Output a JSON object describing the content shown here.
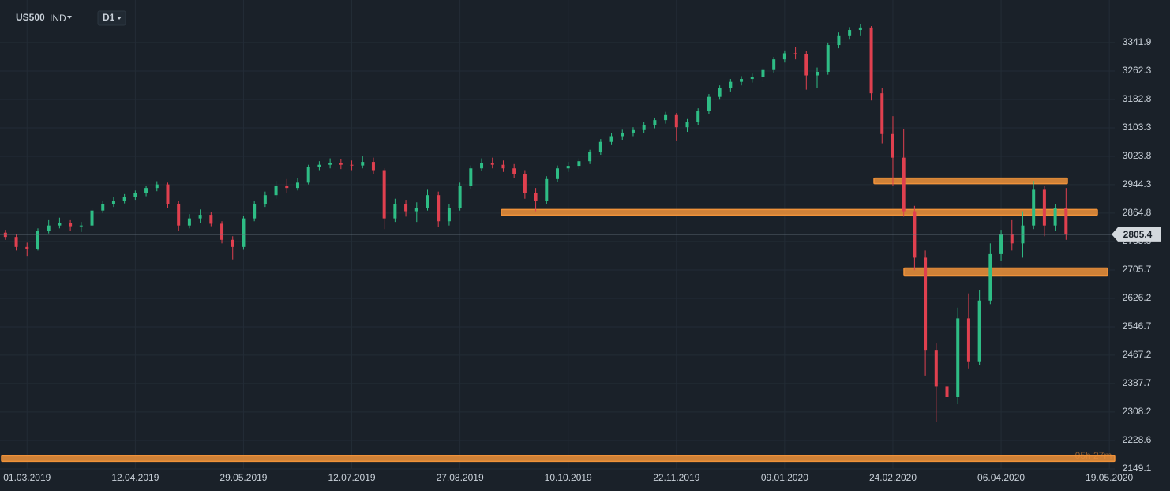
{
  "chart_data": {
    "type": "candlestick",
    "symbol": "US500",
    "market": "IND",
    "timeframe": "D1",
    "countdown": "05h 27m",
    "last_price": 2805.4,
    "categories": [
      null,
      null,
      "01.03.2019",
      null,
      null,
      null,
      null,
      null,
      null,
      null,
      null,
      null,
      "12.04.2019",
      null,
      null,
      null,
      null,
      null,
      null,
      null,
      null,
      null,
      "29.05.2019",
      null,
      null,
      null,
      null,
      null,
      null,
      null,
      null,
      null,
      "12.07.2019",
      null,
      null,
      null,
      null,
      null,
      null,
      null,
      null,
      null,
      "27.08.2019",
      null,
      null,
      null,
      null,
      null,
      null,
      null,
      null,
      null,
      "10.10.2019",
      null,
      null,
      null,
      null,
      null,
      null,
      null,
      null,
      null,
      "22.11.2019",
      null,
      null,
      null,
      null,
      null,
      null,
      null,
      null,
      null,
      "09.01.2020",
      null,
      null,
      null,
      null,
      null,
      null,
      null,
      null,
      null,
      "24.02.2020",
      null,
      null,
      null,
      null,
      null,
      null,
      null,
      null,
      null,
      "06.04.2020",
      null,
      null,
      null,
      null,
      null,
      null,
      null,
      null,
      null,
      "19.05.2020"
    ],
    "open": [
      2810,
      2798,
      2770,
      2765,
      2815,
      2830,
      2838,
      2828,
      2830,
      2872,
      2890,
      2900,
      2910,
      2920,
      2935,
      2945,
      2890,
      2830,
      2850,
      2860,
      2835,
      2790,
      2770,
      2850,
      2890,
      2915,
      2942,
      2935,
      2950,
      2993,
      3000,
      3005,
      3000,
      2998,
      3008,
      2985,
      2850,
      2890,
      2870,
      2880,
      2915,
      2842,
      2880,
      2940,
      2990,
      3005,
      3000,
      2990,
      2975,
      2920,
      2900,
      2960,
      2990,
      2997,
      3010,
      3035,
      3064,
      3080,
      3090,
      3097,
      3112,
      3125,
      3139,
      3105,
      3120,
      3150,
      3190,
      3215,
      3232,
      3240,
      3245,
      3265,
      3295,
      3312,
      3310,
      3250,
      3260,
      3335,
      3362,
      3377,
      3384,
      3200,
      3086,
      3020,
      2870,
      2740,
      2480,
      2380,
      2350,
      2570,
      2450,
      2620,
      2750,
      2805,
      2780,
      2830,
      2930,
      2830,
      2880,
      null,
      null,
      null,
      null
    ],
    "high": [
      2818,
      2805,
      2782,
      2822,
      2845,
      2852,
      2845,
      2840,
      2880,
      2898,
      2910,
      2918,
      2928,
      2942,
      2954,
      2950,
      2898,
      2862,
      2875,
      2868,
      2842,
      2800,
      2858,
      2898,
      2925,
      2955,
      2960,
      2962,
      3000,
      3010,
      3018,
      3015,
      3012,
      3025,
      3020,
      2990,
      2905,
      2902,
      2895,
      2930,
      2925,
      2890,
      2950,
      2998,
      3018,
      3020,
      3012,
      3002,
      2985,
      2935,
      2968,
      2998,
      3008,
      3018,
      3042,
      3072,
      3088,
      3098,
      3105,
      3120,
      3132,
      3148,
      3145,
      3128,
      3158,
      3198,
      3222,
      3240,
      3248,
      3255,
      3272,
      3302,
      3320,
      3330,
      3318,
      3272,
      3342,
      3370,
      3385,
      3393,
      3388,
      3215,
      3136,
      3100,
      2885,
      2760,
      2500,
      2470,
      2600,
      2640,
      2650,
      2780,
      2818,
      2845,
      2870,
      2955,
      2940,
      2890,
      2935,
      null,
      null,
      null,
      null
    ],
    "low": [
      2790,
      2760,
      2745,
      2760,
      2808,
      2822,
      2815,
      2812,
      2825,
      2865,
      2882,
      2892,
      2902,
      2912,
      2926,
      2880,
      2815,
      2822,
      2838,
      2828,
      2780,
      2735,
      2762,
      2842,
      2882,
      2905,
      2922,
      2928,
      2945,
      2985,
      2990,
      2988,
      2985,
      2990,
      2975,
      2820,
      2840,
      2855,
      2840,
      2872,
      2825,
      2830,
      2872,
      2932,
      2982,
      2990,
      2980,
      2962,
      2905,
      2870,
      2890,
      2952,
      2980,
      2988,
      3002,
      3028,
      3055,
      3070,
      3080,
      3088,
      3102,
      3115,
      3068,
      3092,
      3112,
      3142,
      3182,
      3205,
      3222,
      3230,
      3236,
      3258,
      3286,
      3295,
      3210,
      3215,
      3252,
      3326,
      3350,
      3362,
      3180,
      3060,
      2940,
      2855,
      2705,
      2410,
      2280,
      2191,
      2330,
      2430,
      2440,
      2610,
      2730,
      2760,
      2740,
      2820,
      2800,
      2815,
      2790,
      null,
      null,
      null,
      null
    ],
    "close": [
      2798,
      2770,
      2765,
      2815,
      2830,
      2838,
      2828,
      2830,
      2872,
      2890,
      2900,
      2910,
      2920,
      2935,
      2945,
      2890,
      2830,
      2850,
      2860,
      2835,
      2790,
      2770,
      2850,
      2890,
      2915,
      2942,
      2935,
      2950,
      2993,
      3000,
      3005,
      3000,
      2998,
      3008,
      2985,
      2850,
      2890,
      2870,
      2880,
      2915,
      2842,
      2880,
      2940,
      2990,
      3005,
      3000,
      2990,
      2975,
      2920,
      2900,
      2960,
      2990,
      2997,
      3010,
      3035,
      3064,
      3080,
      3090,
      3097,
      3112,
      3125,
      3139,
      3105,
      3120,
      3150,
      3190,
      3215,
      3232,
      3240,
      3245,
      3265,
      3295,
      3312,
      3310,
      3250,
      3260,
      3335,
      3362,
      3377,
      3384,
      3200,
      3086,
      3020,
      2870,
      2740,
      2480,
      2380,
      2350,
      2570,
      2450,
      2620,
      2750,
      2805,
      2780,
      2830,
      2930,
      2830,
      2880,
      2805.4,
      null,
      null,
      null,
      null
    ],
    "up_color": "#2ebd85",
    "down_color": "#e0404f",
    "zone_color": "#f0923a",
    "zones": [
      2955,
      2867,
      2700,
      2178
    ],
    "ylim": [
      2149,
      3461
    ],
    "yticks": [
      3341.9,
      3262.3,
      3182.8,
      3103.3,
      3023.8,
      2944.3,
      2864.8,
      2785.3,
      2705.7,
      2626.2,
      2546.7,
      2467.2,
      2387.7,
      2308.2,
      2228.6,
      2149.1
    ],
    "grid": true
  }
}
